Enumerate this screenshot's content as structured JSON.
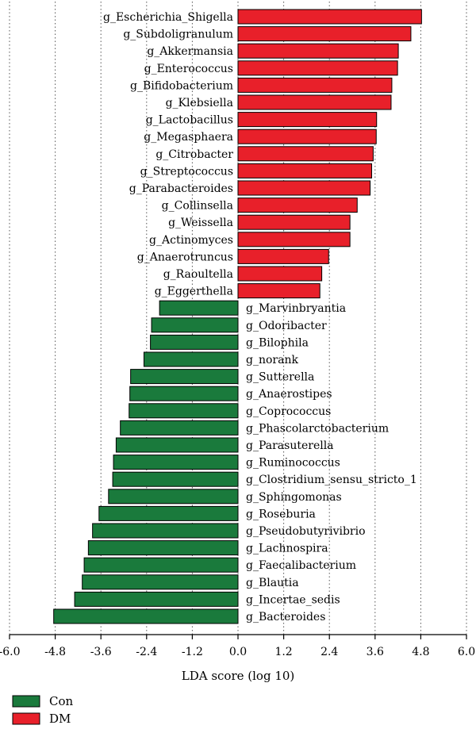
{
  "chart_data": {
    "type": "bar",
    "orientation": "horizontal",
    "xlabel": "LDA score (log 10)",
    "xlim": [
      -6.0,
      6.0
    ],
    "x_ticks": [
      "-6.0",
      "-4.8",
      "-3.6",
      "-2.4",
      "-1.2",
      "0.0",
      "1.2",
      "2.4",
      "3.6",
      "4.8",
      "6.0"
    ],
    "vertical_gridlines": true,
    "legend_position": "bottom-left",
    "series": [
      {
        "name": "Con",
        "color": "#1a7a3c"
      },
      {
        "name": "DM",
        "color": "#e8202a"
      }
    ],
    "bars": [
      {
        "label": "g_Escherichia_Shigella",
        "value": 4.82,
        "group": "DM"
      },
      {
        "label": "g_Subdoligranulum",
        "value": 4.54,
        "group": "DM"
      },
      {
        "label": "g_Akkermansia",
        "value": 4.21,
        "group": "DM"
      },
      {
        "label": "g_Enterococcus",
        "value": 4.19,
        "group": "DM"
      },
      {
        "label": "g_Bifidobacterium",
        "value": 4.04,
        "group": "DM"
      },
      {
        "label": "g_Klebsiella",
        "value": 4.02,
        "group": "DM"
      },
      {
        "label": "g_Lactobacillus",
        "value": 3.64,
        "group": "DM"
      },
      {
        "label": "g_Megasphaera",
        "value": 3.63,
        "group": "DM"
      },
      {
        "label": "g_Citrobacter",
        "value": 3.55,
        "group": "DM"
      },
      {
        "label": "g_Streptococcus",
        "value": 3.51,
        "group": "DM"
      },
      {
        "label": "g_Parabacteroides",
        "value": 3.47,
        "group": "DM"
      },
      {
        "label": "g_Collinsella",
        "value": 3.13,
        "group": "DM"
      },
      {
        "label": "g_Weissella",
        "value": 2.94,
        "group": "DM"
      },
      {
        "label": "g_Actinomyces",
        "value": 2.94,
        "group": "DM"
      },
      {
        "label": "g_Anaerotruncus",
        "value": 2.38,
        "group": "DM"
      },
      {
        "label": "g_Raoultella",
        "value": 2.2,
        "group": "DM"
      },
      {
        "label": "g_Eggerthella",
        "value": 2.15,
        "group": "DM"
      },
      {
        "label": "g_Marvinbryantia",
        "value": -2.06,
        "group": "Con"
      },
      {
        "label": "g_Odoribacter",
        "value": -2.27,
        "group": "Con"
      },
      {
        "label": "g_Bilophila",
        "value": -2.3,
        "group": "Con"
      },
      {
        "label": "g_norank",
        "value": -2.47,
        "group": "Con"
      },
      {
        "label": "g_Sutterella",
        "value": -2.82,
        "group": "Con"
      },
      {
        "label": "g_Anaerostipes",
        "value": -2.84,
        "group": "Con"
      },
      {
        "label": "g_Coprococcus",
        "value": -2.86,
        "group": "Con"
      },
      {
        "label": "g_Phascolarctobacterium",
        "value": -3.09,
        "group": "Con"
      },
      {
        "label": "g_Parasuterella",
        "value": -3.2,
        "group": "Con"
      },
      {
        "label": "g_Ruminococcus",
        "value": -3.27,
        "group": "Con"
      },
      {
        "label": "g_Clostridium_sensu_stricto_1",
        "value": -3.29,
        "group": "Con"
      },
      {
        "label": "g_Sphingomonas",
        "value": -3.4,
        "group": "Con"
      },
      {
        "label": "g_Roseburia",
        "value": -3.65,
        "group": "Con"
      },
      {
        "label": "g_Pseudobutyrivibrio",
        "value": -3.82,
        "group": "Con"
      },
      {
        "label": "g_Lachnospira",
        "value": -3.93,
        "group": "Con"
      },
      {
        "label": "g_Faecalibacterium",
        "value": -4.04,
        "group": "Con"
      },
      {
        "label": "g_Blautia",
        "value": -4.09,
        "group": "Con"
      },
      {
        "label": "g_Incertae_sedis",
        "value": -4.29,
        "group": "Con"
      },
      {
        "label": "g_Bacteroides",
        "value": -4.84,
        "group": "Con"
      }
    ]
  }
}
